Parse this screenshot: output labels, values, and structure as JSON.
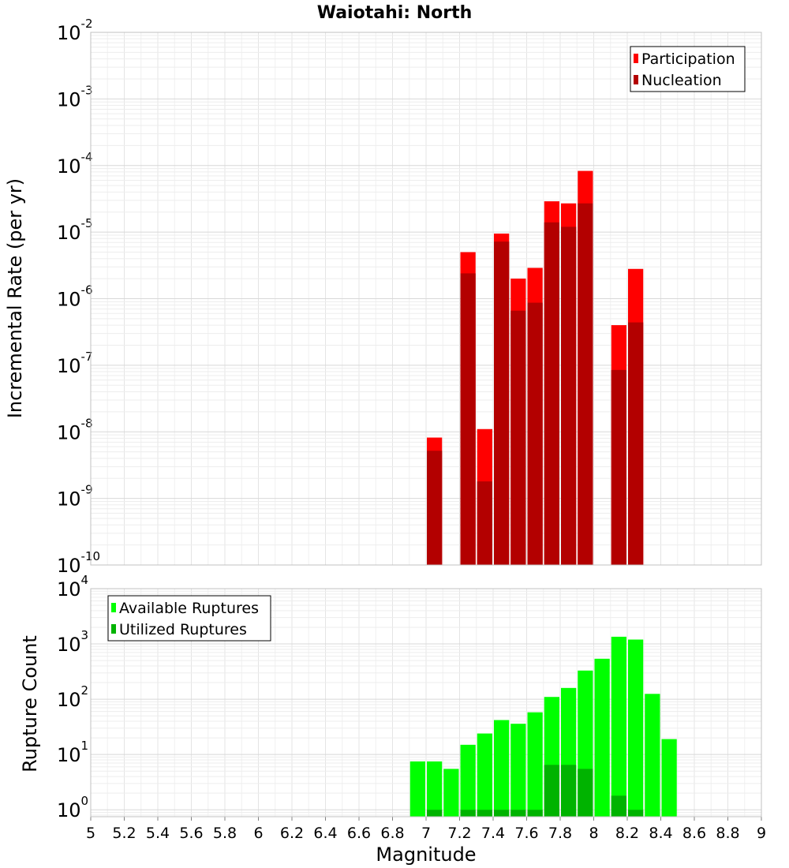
{
  "chart_data": [
    {
      "type": "bar",
      "title": "Waiotahi: North",
      "ylabel": "Incremental Rate (per yr)",
      "xlabel": "",
      "yscale": "log",
      "ylim": [
        1e-10,
        0.01
      ],
      "xlim": [
        5,
        9
      ],
      "yticks": [
        {
          "base": "10",
          "exp": "-10",
          "value": 1e-10
        },
        {
          "base": "10",
          "exp": "-9",
          "value": 1e-09
        },
        {
          "base": "10",
          "exp": "-8",
          "value": 1e-08
        },
        {
          "base": "10",
          "exp": "-7",
          "value": 1e-07
        },
        {
          "base": "10",
          "exp": "-6",
          "value": 1e-06
        },
        {
          "base": "10",
          "exp": "-5",
          "value": 1e-05
        },
        {
          "base": "10",
          "exp": "-4",
          "value": 0.0001
        },
        {
          "base": "10",
          "exp": "-3",
          "value": 0.001
        },
        {
          "base": "10",
          "exp": "-2",
          "value": 0.01
        }
      ],
      "legend": {
        "position": "top-right"
      },
      "grid": true,
      "bin_width": 0.1,
      "series": [
        {
          "name": "Participation",
          "color": "#ff0000",
          "points": [
            {
              "x": 7.05,
              "y": 8.2e-09
            },
            {
              "x": 7.25,
              "y": 5e-06
            },
            {
              "x": 7.35,
              "y": 1.1e-08
            },
            {
              "x": 7.45,
              "y": 9.5e-06
            },
            {
              "x": 7.55,
              "y": 2e-06
            },
            {
              "x": 7.65,
              "y": 2.9e-06
            },
            {
              "x": 7.75,
              "y": 2.9e-05
            },
            {
              "x": 7.85,
              "y": 2.7e-05
            },
            {
              "x": 7.95,
              "y": 8.3e-05
            },
            {
              "x": 8.15,
              "y": 4e-07
            },
            {
              "x": 8.25,
              "y": 2.8e-06
            }
          ]
        },
        {
          "name": "Nucleation",
          "color": "#b30000",
          "points": [
            {
              "x": 7.05,
              "y": 5.2e-09
            },
            {
              "x": 7.25,
              "y": 2.4e-06
            },
            {
              "x": 7.35,
              "y": 1.8e-09
            },
            {
              "x": 7.45,
              "y": 7.2e-06
            },
            {
              "x": 7.55,
              "y": 6.6e-07
            },
            {
              "x": 7.65,
              "y": 8.7e-07
            },
            {
              "x": 7.75,
              "y": 1.4e-05
            },
            {
              "x": 7.85,
              "y": 1.2e-05
            },
            {
              "x": 7.95,
              "y": 2.7e-05
            },
            {
              "x": 8.15,
              "y": 8.5e-08
            },
            {
              "x": 8.25,
              "y": 4.4e-07
            }
          ]
        }
      ]
    },
    {
      "type": "bar",
      "ylabel": "Rupture Count",
      "xlabel": "Magnitude",
      "yscale": "log",
      "ylim": [
        0.75,
        10000
      ],
      "xlim": [
        5,
        9
      ],
      "xticks": [
        "5",
        "5.2",
        "5.4",
        "5.6",
        "5.8",
        "6",
        "6.2",
        "6.4",
        "6.6",
        "6.8",
        "7",
        "7.2",
        "7.4",
        "7.6",
        "7.8",
        "8",
        "8.2",
        "8.4",
        "8.6",
        "8.8",
        "9"
      ],
      "yticks": [
        {
          "base": "10",
          "exp": "0",
          "value": 1
        },
        {
          "base": "10",
          "exp": "1",
          "value": 10
        },
        {
          "base": "10",
          "exp": "2",
          "value": 100
        },
        {
          "base": "10",
          "exp": "3",
          "value": 1000
        },
        {
          "base": "10",
          "exp": "4",
          "value": 10000
        }
      ],
      "legend": {
        "position": "top-left"
      },
      "grid": true,
      "bin_width": 0.1,
      "series": [
        {
          "name": "Available Ruptures",
          "color": "#00ff00",
          "points": [
            {
              "x": 6.95,
              "y": 7.5
            },
            {
              "x": 7.05,
              "y": 7.5
            },
            {
              "x": 7.15,
              "y": 5.5
            },
            {
              "x": 7.25,
              "y": 15
            },
            {
              "x": 7.35,
              "y": 24
            },
            {
              "x": 7.45,
              "y": 42
            },
            {
              "x": 7.55,
              "y": 36
            },
            {
              "x": 7.65,
              "y": 58
            },
            {
              "x": 7.75,
              "y": 110
            },
            {
              "x": 7.85,
              "y": 160
            },
            {
              "x": 7.95,
              "y": 330
            },
            {
              "x": 8.05,
              "y": 540
            },
            {
              "x": 8.15,
              "y": 1350
            },
            {
              "x": 8.25,
              "y": 1200
            },
            {
              "x": 8.35,
              "y": 125
            },
            {
              "x": 8.45,
              "y": 19
            }
          ]
        },
        {
          "name": "Utilized Ruptures",
          "color": "#00b300",
          "points": [
            {
              "x": 7.05,
              "y": 1
            },
            {
              "x": 7.25,
              "y": 1
            },
            {
              "x": 7.35,
              "y": 1
            },
            {
              "x": 7.45,
              "y": 1
            },
            {
              "x": 7.55,
              "y": 1
            },
            {
              "x": 7.65,
              "y": 1
            },
            {
              "x": 7.75,
              "y": 6.5
            },
            {
              "x": 7.85,
              "y": 6.5
            },
            {
              "x": 7.95,
              "y": 5.5
            },
            {
              "x": 8.15,
              "y": 1.8
            },
            {
              "x": 8.25,
              "y": 1
            }
          ]
        }
      ]
    }
  ]
}
